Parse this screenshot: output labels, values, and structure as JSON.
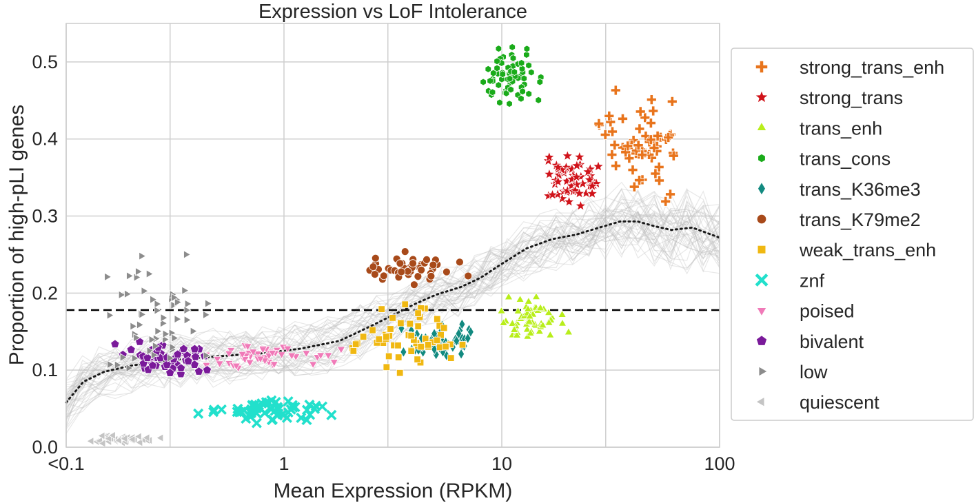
{
  "chart_data": {
    "type": "scatter",
    "title": "Expression vs LoF Intolerance",
    "xlabel": "Mean Expression (RPKM)",
    "ylabel": "Proportion of high-pLI genes",
    "xscale": "log",
    "xlim": [
      0.1,
      100
    ],
    "ylim": [
      0.0,
      0.55
    ],
    "xticks": [
      {
        "value": 0.1,
        "label": "<0.1"
      },
      {
        "value": 1,
        "label": "1"
      },
      {
        "value": 10,
        "label": "10"
      },
      {
        "value": 100,
        "label": "100"
      }
    ],
    "x_gridlines": [
      0.1,
      0.3,
      1,
      3,
      10,
      30,
      100
    ],
    "yticks": [
      {
        "value": 0.0,
        "label": "0.0"
      },
      {
        "value": 0.1,
        "label": "0.1"
      },
      {
        "value": 0.2,
        "label": "0.2"
      },
      {
        "value": 0.3,
        "label": "0.3"
      },
      {
        "value": 0.4,
        "label": "0.4"
      },
      {
        "value": 0.5,
        "label": "0.5"
      }
    ],
    "grid": true,
    "legend_position": "right, outside plot",
    "reference_line": {
      "y": 0.178,
      "style": "dashed",
      "color": "#000000"
    },
    "trend_line": {
      "style": "dotted",
      "color": "#1a1a1a",
      "x": [
        0.1,
        0.12,
        0.15,
        0.2,
        0.3,
        0.5,
        0.8,
        1.2,
        1.8,
        2.5,
        3.2,
        4,
        5,
        6.5,
        8,
        10,
        13,
        17,
        22,
        28,
        35,
        42,
        50,
        60,
        75,
        100
      ],
      "y": [
        0.058,
        0.085,
        0.098,
        0.106,
        0.113,
        0.118,
        0.122,
        0.128,
        0.138,
        0.157,
        0.172,
        0.186,
        0.198,
        0.208,
        0.22,
        0.238,
        0.258,
        0.27,
        0.276,
        0.285,
        0.293,
        0.293,
        0.287,
        0.282,
        0.285,
        0.272
      ]
    },
    "series": [
      {
        "name": "strong_trans_enh",
        "color": "#e8741c",
        "marker": "plus",
        "x_range": [
          25,
          80
        ],
        "y_range": [
          0.305,
          0.475
        ],
        "n": 60
      },
      {
        "name": "strong_trans",
        "color": "#d0131a",
        "marker": "star",
        "x_range": [
          13,
          32
        ],
        "y_range": [
          0.295,
          0.39
        ],
        "n": 55
      },
      {
        "name": "trans_enh",
        "color": "#b8ee1a",
        "marker": "triangle-up",
        "x_range": [
          8,
          22
        ],
        "y_range": [
          0.125,
          0.205
        ],
        "n": 55
      },
      {
        "name": "trans_cons",
        "color": "#1aab1a",
        "marker": "hexagon",
        "x_range": [
          7,
          18
        ],
        "y_range": [
          0.425,
          0.535
        ],
        "n": 60
      },
      {
        "name": "trans_K36me3",
        "color": "#128a80",
        "marker": "diamond",
        "x_range": [
          3.2,
          8.5
        ],
        "y_range": [
          0.105,
          0.168
        ],
        "n": 55
      },
      {
        "name": "trans_K79me2",
        "color": "#a84a1a",
        "marker": "circle",
        "x_range": [
          2,
          8
        ],
        "y_range": [
          0.205,
          0.258
        ],
        "n": 50
      },
      {
        "name": "weak_trans_enh",
        "color": "#f0b812",
        "marker": "square",
        "x_range": [
          1.7,
          7.5
        ],
        "y_range": [
          0.088,
          0.2
        ],
        "n": 55
      },
      {
        "name": "znf",
        "color": "#22e0cc",
        "marker": "x",
        "x_range": [
          0.35,
          2.2
        ],
        "y_range": [
          0.028,
          0.07
        ],
        "n": 55
      },
      {
        "name": "poised",
        "color": "#f07ab8",
        "marker": "triangle-down",
        "x_range": [
          0.25,
          2.2
        ],
        "y_range": [
          0.095,
          0.142
        ],
        "n": 55
      },
      {
        "name": "bivalent",
        "color": "#7a1a9a",
        "marker": "pentagon",
        "x_range": [
          0.15,
          0.6
        ],
        "y_range": [
          0.085,
          0.145
        ],
        "n": 50
      },
      {
        "name": "low",
        "color": "#8c8c8c",
        "marker": "triangle-right",
        "x_range": [
          0.12,
          0.6
        ],
        "y_range": [
          0.05,
          0.278
        ],
        "n": 55
      },
      {
        "name": "quiescent",
        "color": "#c4c4c4",
        "marker": "triangle-left",
        "x_range": [
          0.11,
          0.3
        ],
        "y_range": [
          0.003,
          0.018
        ],
        "n": 40
      }
    ]
  }
}
